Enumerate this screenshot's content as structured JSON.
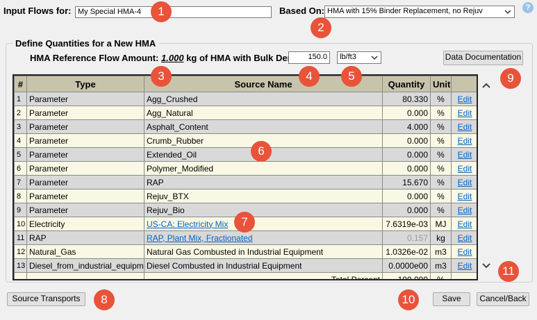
{
  "header": {
    "input_label": "Input Flows for:",
    "input_value": "My Special HMA-4",
    "based_on_label": "Based On:",
    "based_on_value": "HMA with 15% Binder Replacement, no Rejuv",
    "help": "?"
  },
  "section": {
    "title": "Define Quantities for a New HMA",
    "ref_prefix": "HMA Reference Flow Amount:",
    "ref_amount": "1.000",
    "ref_suffix": "kg of HMA with Bulk Density:",
    "density": "150.0",
    "density_unit": "lb/ft3",
    "doc_button": "Data Documentation"
  },
  "table": {
    "columns": [
      "#",
      "Type",
      "Source Name",
      "Quantity",
      "Unit"
    ],
    "rows": [
      {
        "n": "1",
        "type": "Parameter",
        "source": "Agg_Crushed",
        "quantity": "80.330",
        "unit": "%",
        "action": "Edit"
      },
      {
        "n": "2",
        "type": "Parameter",
        "source": "Agg_Natural",
        "quantity": "0.000",
        "unit": "%",
        "action": "Edit"
      },
      {
        "n": "3",
        "type": "Parameter",
        "source": "Asphalt_Content",
        "quantity": "4.000",
        "unit": "%",
        "action": "Edit"
      },
      {
        "n": "4",
        "type": "Parameter",
        "source": "Crumb_Rubber",
        "quantity": "0.000",
        "unit": "%",
        "action": "Edit"
      },
      {
        "n": "5",
        "type": "Parameter",
        "source": "Extended_Oil",
        "quantity": "0.000",
        "unit": "%",
        "action": "Edit"
      },
      {
        "n": "6",
        "type": "Parameter",
        "source": "Polymer_Modified",
        "quantity": "0.000",
        "unit": "%",
        "action": "Edit"
      },
      {
        "n": "7",
        "type": "Parameter",
        "source": "RAP",
        "quantity": "15.670",
        "unit": "%",
        "action": "Edit"
      },
      {
        "n": "8",
        "type": "Parameter",
        "source": "Rejuv_BTX",
        "quantity": "0.000",
        "unit": "%",
        "action": "Edit"
      },
      {
        "n": "9",
        "type": "Parameter",
        "source": "Rejuv_Bio",
        "quantity": "0.000",
        "unit": "%",
        "action": "Edit"
      },
      {
        "n": "10",
        "type": "Electricity",
        "source": "US-CA: Electricity Mix",
        "source_link": true,
        "quantity": "7.6319e-03",
        "unit": "MJ",
        "action": "Edit"
      },
      {
        "n": "11",
        "type": "RAP",
        "source": "RAP, Plant Mix, Fractionated",
        "source_link": true,
        "quantity": "0.157",
        "quantity_muted": true,
        "unit": "kg",
        "action": "Edit"
      },
      {
        "n": "12",
        "type": "Natural_Gas",
        "source": "Natural Gas Combusted in Industrial Equipment",
        "quantity": "1.0326e-02",
        "unit": "m3",
        "action": "Edit"
      },
      {
        "n": "13",
        "type": "Diesel_from_industrial_equipment",
        "source": "Diesel Combusted in Industrial Equipment",
        "quantity": "0.0000e00",
        "unit": "m3",
        "action": "Edit"
      }
    ],
    "total": {
      "label": "Total Percent",
      "value": "100.000",
      "unit": "%"
    }
  },
  "buttons": {
    "source_transports": "Source Transports",
    "save": "Save",
    "cancel": "Cancel/Back"
  },
  "markers": [
    "1",
    "2",
    "3",
    "4",
    "5",
    "6",
    "7",
    "8",
    "9",
    "10",
    "11"
  ]
}
